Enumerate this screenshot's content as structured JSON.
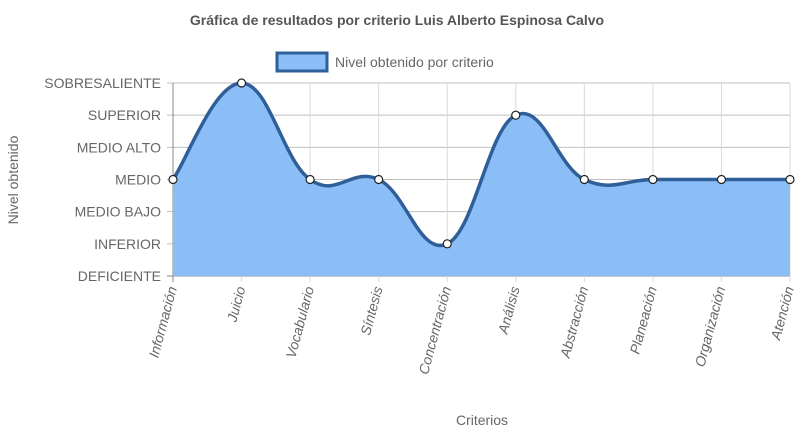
{
  "chart_data": {
    "type": "area",
    "title": "Gráfica de resultados por criterio Luis Alberto Espinosa Calvo",
    "xlabel": "Criterios",
    "ylabel": "Nivel obtenido",
    "categories": [
      "Información",
      "Juicio",
      "Vocabulario",
      "Síntesis",
      "Concentración",
      "Análisis",
      "Abstracción",
      "Planeación",
      "Organización",
      "Atención"
    ],
    "y_levels": [
      "DEFICIENTE",
      "INFERIOR",
      "MEDIO BAJO",
      "MEDIO",
      "MEDIO ALTO",
      "SUPERIOR",
      "SOBRESALIENTE"
    ],
    "series": [
      {
        "name": "Nivel obtenido por criterio",
        "values": [
          "MEDIO",
          "SOBRESALIENTE",
          "MEDIO",
          "MEDIO",
          "INFERIOR",
          "SUPERIOR",
          "MEDIO",
          "MEDIO",
          "MEDIO",
          "MEDIO"
        ]
      }
    ],
    "legend": "top",
    "grid": true,
    "colors": {
      "fill": "#8bbdf7",
      "line": "#2f5f99",
      "grid": "#d9d9d9",
      "axis": "#888888",
      "text": "#666666",
      "title": "#555555"
    }
  }
}
